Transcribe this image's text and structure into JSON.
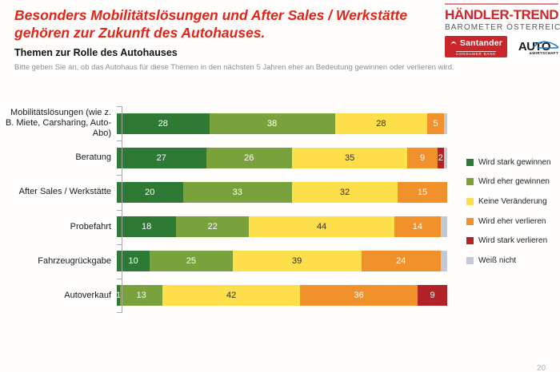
{
  "header": {
    "title_lines": [
      "Besonders Mobilitätslösungen und After Sales / Werkstätte",
      "gehören zur Zukunft des Autohauses."
    ],
    "brand": {
      "name": "HÄNDLER-TREND",
      "subname": "BAROMETER ÖSTERREICH",
      "santander": {
        "label": "Santander",
        "sublabel": "CONSUMER BANK"
      },
      "auto": {
        "label": "AUTO",
        "sublabel": "&WIRTSCHAFT"
      }
    }
  },
  "section": {
    "title": "Themen zur Rolle des Autohauses",
    "subtitle": "Bitte geben Sie an, ob das Autohaus für diese Themen in den nächsten 5 Jahren eher an Bedeutung gewinnen oder verlieren wird."
  },
  "chart_data": {
    "type": "bar",
    "orientation": "horizontal",
    "stacked": true,
    "unit": "percent",
    "xlim": [
      0,
      100
    ],
    "grid": false,
    "legend_position": "right",
    "categories": [
      "Mobilitätslösungen (wie z. B. Miete, Carsharing, Auto-Abo)",
      "Beratung",
      "After Sales / Werkstätte",
      "Probefahrt",
      "Fahrzeugrückgabe",
      "Autoverkauf"
    ],
    "series": [
      {
        "name": "Wird stark gewinnen",
        "color": "#2e7a35",
        "label_color": "#ffffff",
        "show_labels": true,
        "values": [
          28,
          27,
          20,
          18,
          10,
          1
        ]
      },
      {
        "name": "Wird eher gewinnen",
        "color": "#7aa23c",
        "label_color": "#ffffff",
        "show_labels": true,
        "values": [
          38,
          26,
          33,
          22,
          25,
          13
        ]
      },
      {
        "name": "Keine Veränderung",
        "color": "#fcdf4a",
        "label_color": "#2e2e2e",
        "show_labels": true,
        "values": [
          28,
          35,
          32,
          44,
          39,
          42
        ]
      },
      {
        "name": "Wird eher verlieren",
        "color": "#f0912c",
        "label_color": "#ffffff",
        "show_labels": true,
        "values": [
          5,
          9,
          15,
          14,
          24,
          36
        ]
      },
      {
        "name": "Wird stark verlieren",
        "color": "#b22327",
        "label_color": "#ffffff",
        "show_labels": true,
        "values": [
          0,
          2,
          0,
          0,
          0,
          9
        ]
      },
      {
        "name": "Weiß nicht",
        "color": "#c3c9d5",
        "label_color": "#2e2e2e",
        "show_labels": false,
        "values": [
          1,
          1,
          0,
          2,
          2,
          0
        ]
      }
    ]
  },
  "footer": {
    "page_number": "20"
  }
}
